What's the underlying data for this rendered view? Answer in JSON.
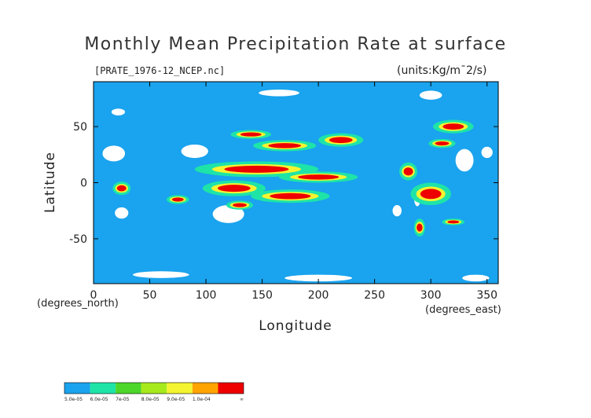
{
  "chart_data": {
    "type": "heatmap",
    "title": "Monthly Mean Precipitation Rate at surface",
    "subtitle": "[PRATE_1976-12_NCEP.nc]",
    "units": "(units:Kg/m¯2/s)",
    "xlabel": "Longitude",
    "ylabel": "Latitude",
    "x_unit_label": "(degrees_north)",
    "x_unit_label_east": "(degrees_east)",
    "xlim": [
      0,
      360
    ],
    "ylim": [
      -90,
      90
    ],
    "x_ticks": [
      0,
      50,
      100,
      150,
      200,
      250,
      300,
      350
    ],
    "y_ticks": [
      50,
      0,
      -50
    ],
    "legend": {
      "placement": "bottom-left",
      "bins": [
        {
          "label": "5.0e-05",
          "color": "#1aa3ee"
        },
        {
          "label": "6.0e-05",
          "color": "#1ee4a8"
        },
        {
          "label": "7e-05",
          "color": "#4cd72a"
        },
        {
          "label": "8.0e-05",
          "color": "#a6ea1c"
        },
        {
          "label": "9.0e-05",
          "color": "#f4f430"
        },
        {
          "label": "1.0e-04",
          "color": "#ffa400"
        },
        {
          "label": "∞",
          "color": "#ee0000"
        }
      ]
    },
    "colors": {
      "ocean": "#1aa3ee",
      "dry": "#ffffff",
      "green": "#1ee4a8",
      "yellow": "#f4f430",
      "heavy": "#ee0000"
    }
  }
}
